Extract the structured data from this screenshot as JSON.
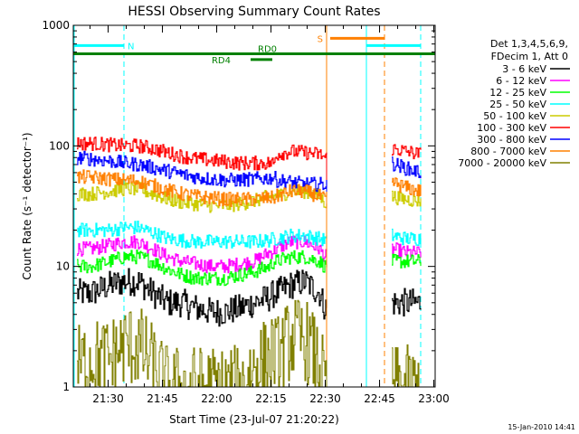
{
  "chart_data": {
    "type": "line",
    "title": "HESSI Observing Summary Count Rates",
    "xlabel": "Start Time (23-Jul-07 21:20:22)",
    "ylabel": "Count Rate (s⁻¹ detector⁻¹)",
    "yscale": "log",
    "ylim": [
      1,
      1000
    ],
    "xlim_minutes_after_2120": [
      0,
      100
    ],
    "x_ticks": [
      "21:30",
      "21:45",
      "22:00",
      "22:15",
      "22:30",
      "22:45",
      "23:00"
    ],
    "y_ticks": [
      "1",
      "10",
      "100",
      "1000"
    ],
    "legend_header": [
      "Det 1,3,4,5,6,9,",
      "FDecim 1, Att 0"
    ],
    "timestamp": "15-Jan-2010 14:41",
    "gaps": [
      [
        70,
        88
      ]
    ],
    "series": [
      {
        "name": "3 - 6 keV",
        "color": "#000000",
        "x": [
          1,
          5,
          10,
          14,
          18,
          22,
          26,
          30,
          34,
          38,
          42,
          46,
          50,
          54,
          55.5,
          56,
          60,
          64,
          68,
          69.5,
          88,
          92,
          96
        ],
        "y": [
          6,
          6,
          7,
          7.5,
          7.5,
          6,
          5,
          5,
          4.5,
          4.2,
          4.2,
          4.5,
          5,
          5.5,
          6,
          6,
          7,
          7.5,
          6,
          4.5,
          5,
          5,
          5
        ]
      },
      {
        "name": "6 - 12 keV",
        "color": "#ff00ff",
        "x": [
          1,
          5,
          10,
          14,
          18,
          22,
          26,
          30,
          34,
          38,
          42,
          46,
          50,
          54,
          55.5,
          56,
          60,
          64,
          68,
          69.5,
          88,
          92,
          96
        ],
        "y": [
          14,
          14,
          15,
          16,
          16,
          14,
          12,
          11,
          10.5,
          10,
          10,
          10.5,
          11,
          13,
          13.5,
          14,
          16,
          16,
          14,
          12,
          14,
          13,
          13
        ]
      },
      {
        "name": "12 - 25 keV",
        "color": "#00ff00",
        "x": [
          1,
          5,
          10,
          14,
          18,
          22,
          26,
          30,
          34,
          38,
          42,
          46,
          50,
          54,
          55.5,
          56,
          60,
          64,
          68,
          69.5,
          88,
          92,
          96
        ],
        "y": [
          10,
          10,
          11,
          12,
          12,
          11,
          9.5,
          8.5,
          8,
          8,
          8,
          8.5,
          9,
          10,
          11,
          11,
          12,
          12,
          11,
          10,
          11,
          11,
          11
        ]
      },
      {
        "name": "25 - 50 keV",
        "color": "#00ffff",
        "x": [
          1,
          5,
          10,
          14,
          18,
          22,
          26,
          30,
          34,
          38,
          42,
          46,
          50,
          54,
          55.5,
          56,
          60,
          64,
          68,
          69.5,
          88,
          92,
          96
        ],
        "y": [
          20,
          20,
          20,
          21,
          21,
          19,
          17,
          16.5,
          16,
          16,
          16,
          16,
          16,
          16.5,
          17,
          17,
          18,
          18,
          17,
          16.5,
          18,
          17,
          17
        ]
      },
      {
        "name": "50 - 100 keV",
        "color": "#cccc00",
        "x": [
          1,
          5,
          10,
          14,
          18,
          22,
          26,
          30,
          34,
          38,
          42,
          46,
          50,
          54,
          55.5,
          56,
          60,
          64,
          68,
          69.5,
          88,
          92,
          96
        ],
        "y": [
          40,
          40,
          42,
          44,
          44,
          40,
          36,
          34,
          33,
          32,
          32,
          33,
          35,
          38,
          38,
          38,
          42,
          42,
          38,
          34,
          38,
          36,
          35
        ]
      },
      {
        "name": "100 - 300 keV",
        "color": "#ff0000",
        "x": [
          1,
          5,
          10,
          14,
          18,
          22,
          26,
          30,
          34,
          38,
          42,
          46,
          50,
          54,
          55.5,
          56,
          60,
          64,
          68,
          69.5,
          88,
          92,
          96
        ],
        "y": [
          105,
          105,
          102,
          100,
          100,
          95,
          88,
          82,
          78,
          76,
          74,
          72,
          72,
          72,
          72,
          85,
          90,
          88,
          85,
          80,
          95,
          90,
          85
        ]
      },
      {
        "name": "300 - 800 keV",
        "color": "#0000ff",
        "x": [
          1,
          5,
          10,
          14,
          18,
          22,
          26,
          30,
          34,
          38,
          42,
          46,
          50,
          54,
          55.5,
          56,
          60,
          64,
          68,
          69.5,
          88,
          92,
          96
        ],
        "y": [
          80,
          78,
          75,
          72,
          70,
          66,
          62,
          58,
          55,
          53,
          52,
          52,
          53,
          54,
          55,
          52,
          50,
          48,
          48,
          48,
          72,
          65,
          60
        ]
      },
      {
        "name": "800 - 7000 keV",
        "color": "#ff8000",
        "x": [
          1,
          5,
          10,
          14,
          18,
          22,
          26,
          30,
          34,
          38,
          42,
          46,
          50,
          54,
          55.5,
          56,
          60,
          64,
          68,
          69.5,
          88,
          92,
          96
        ],
        "y": [
          55,
          55,
          53,
          52,
          51,
          47,
          43,
          40,
          38,
          37,
          36,
          36,
          36,
          37,
          37,
          38,
          42,
          42,
          38,
          36,
          50,
          45,
          42
        ]
      },
      {
        "name": "7000 - 20000 keV",
        "color": "#808000",
        "x": [
          1,
          5,
          10,
          14,
          18,
          22,
          26,
          30,
          34,
          38,
          42,
          46,
          50,
          54,
          55.5,
          56,
          60,
          64,
          68,
          69.5,
          88,
          92,
          96
        ],
        "y": [
          1.5,
          1.7,
          1.7,
          2.2,
          2.2,
          1.5,
          1,
          1,
          1,
          1,
          1,
          1,
          1.5,
          1.7,
          2,
          1.7,
          2.5,
          2.5,
          1.5,
          1,
          1,
          1,
          1
        ]
      }
    ],
    "annotations": [
      {
        "label": "N",
        "color": "#00ffff",
        "x": 14
      },
      {
        "label": "S",
        "color": "#ff8000",
        "x": 70
      },
      {
        "label": "RD0",
        "color": "#008000",
        "x": 51
      },
      {
        "label": "RD4",
        "color": "#008000",
        "x": 44
      }
    ],
    "flag_bars": [
      {
        "color": "#00ffff",
        "segments": [
          [
            0,
            14
          ],
          [
            81,
            96
          ]
        ],
        "y": 680
      },
      {
        "color": "#ff8000",
        "segments": [
          [
            71,
            86
          ]
        ],
        "y": 780
      },
      {
        "color": "#008000",
        "segments": [
          [
            0,
            100
          ]
        ],
        "y": 580
      },
      {
        "color": "#008000",
        "segments": [
          [
            49,
            55
          ]
        ],
        "y": 520
      }
    ],
    "vertical_markers": [
      {
        "color": "#00ffff",
        "x": 14,
        "style": "dashed"
      },
      {
        "color": "#00ffff",
        "x": 96,
        "style": "dashed"
      },
      {
        "color": "#00ffff",
        "x": 81,
        "style": "solid"
      },
      {
        "color": "#ff8000",
        "x": 70,
        "style": "solid"
      },
      {
        "color": "#ff8000",
        "x": 86,
        "style": "dashed"
      }
    ]
  }
}
